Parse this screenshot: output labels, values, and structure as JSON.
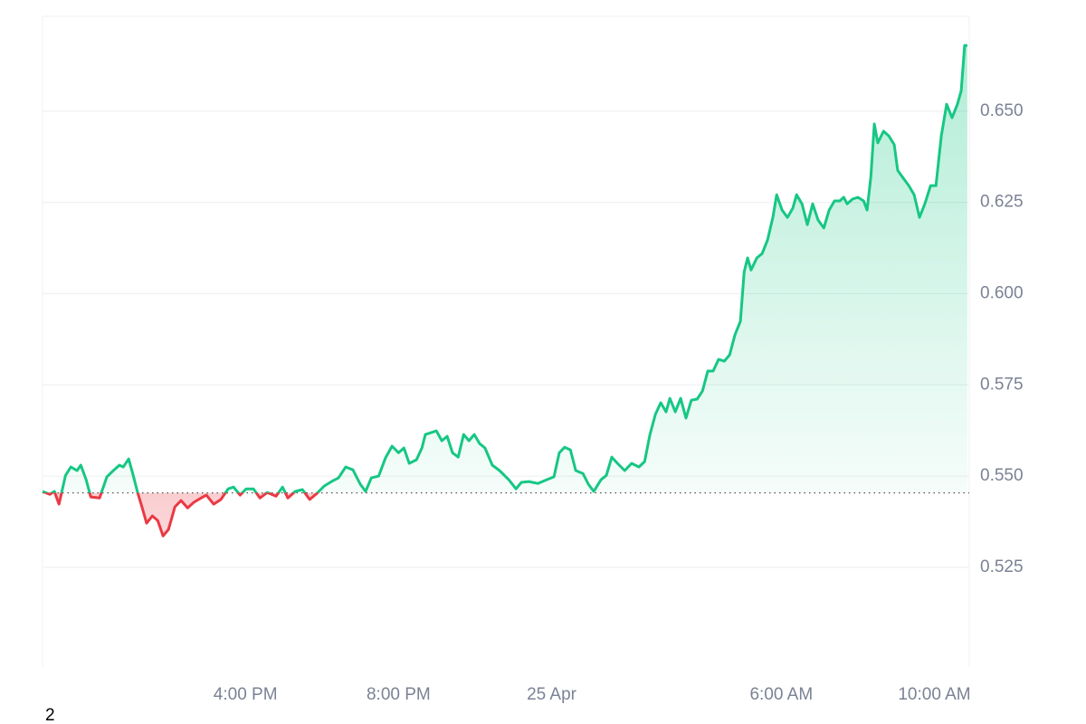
{
  "chart_data": {
    "type": "line",
    "x": [
      10.7,
      10.89,
      11.01,
      11.13,
      11.3,
      11.44,
      11.6,
      11.7,
      11.84,
      11.96,
      12.19,
      12.38,
      12.55,
      12.71,
      12.81,
      12.95,
      13.07,
      13.19,
      13.31,
      13.42,
      13.57,
      13.71,
      13.85,
      13.99,
      14.16,
      14.32,
      14.49,
      14.65,
      14.84,
      14.98,
      15.17,
      15.36,
      15.55,
      15.69,
      15.86,
      16.02,
      16.21,
      16.38,
      16.57,
      16.8,
      16.97,
      17.11,
      17.3,
      17.49,
      17.68,
      17.87,
      18.06,
      18.25,
      18.43,
      18.62,
      18.81,
      19.0,
      19.14,
      19.29,
      19.48,
      19.66,
      19.83,
      20.0,
      20.14,
      20.28,
      20.47,
      20.61,
      20.7,
      20.85,
      20.99,
      21.13,
      21.27,
      21.41,
      21.56,
      21.7,
      21.84,
      21.98,
      22.12,
      22.26,
      22.45,
      22.64,
      22.88,
      23.07,
      23.21,
      23.4,
      23.64,
      23.87,
      24.06,
      24.2,
      24.34,
      24.49,
      24.63,
      24.82,
      24.96,
      25.1,
      25.29,
      25.43,
      25.57,
      25.72,
      25.91,
      26.09,
      26.28,
      26.43,
      26.57,
      26.71,
      26.85,
      26.99,
      27.09,
      27.23,
      27.37,
      27.51,
      27.65,
      27.8,
      27.94,
      28.08,
      28.22,
      28.36,
      28.51,
      28.65,
      28.79,
      28.93,
      29.03,
      29.12,
      29.21,
      29.36,
      29.5,
      29.64,
      29.78,
      29.88,
      30.02,
      30.16,
      30.3,
      30.4,
      30.54,
      30.68,
      30.82,
      30.96,
      31.11,
      31.25,
      31.39,
      31.53,
      31.63,
      31.72,
      31.86,
      32.0,
      32.15,
      32.24,
      32.34,
      32.43,
      32.52,
      32.67,
      32.81,
      32.95,
      33.04,
      33.19,
      33.33,
      33.47,
      33.61,
      33.75,
      33.9,
      34.04,
      34.18,
      34.32,
      34.46,
      34.6,
      34.7,
      34.79,
      34.86
    ],
    "values": [
      0.5458,
      0.545,
      0.5458,
      0.5423,
      0.5502,
      0.5525,
      0.5515,
      0.553,
      0.549,
      0.5443,
      0.544,
      0.5498,
      0.5515,
      0.553,
      0.5525,
      0.5547,
      0.5502,
      0.5453,
      0.5411,
      0.5371,
      0.5391,
      0.5378,
      0.5336,
      0.5354,
      0.5416,
      0.5433,
      0.5413,
      0.5428,
      0.544,
      0.5448,
      0.5423,
      0.5436,
      0.5465,
      0.547,
      0.5448,
      0.5465,
      0.5465,
      0.544,
      0.5455,
      0.5445,
      0.547,
      0.544,
      0.5458,
      0.5463,
      0.5436,
      0.5453,
      0.5473,
      0.5485,
      0.5495,
      0.5525,
      0.5517,
      0.5478,
      0.5458,
      0.5495,
      0.55,
      0.555,
      0.5582,
      0.5564,
      0.5577,
      0.5535,
      0.5545,
      0.5577,
      0.5614,
      0.5619,
      0.5624,
      0.5597,
      0.5609,
      0.5564,
      0.5552,
      0.5614,
      0.5597,
      0.5614,
      0.5589,
      0.5577,
      0.553,
      0.5515,
      0.549,
      0.5465,
      0.5483,
      0.5485,
      0.548,
      0.549,
      0.5498,
      0.5564,
      0.5579,
      0.5572,
      0.5515,
      0.5507,
      0.5478,
      0.5458,
      0.549,
      0.5502,
      0.5552,
      0.5535,
      0.5515,
      0.5535,
      0.5525,
      0.554,
      0.5614,
      0.5669,
      0.5701,
      0.5676,
      0.5713,
      0.5676,
      0.5713,
      0.5659,
      0.5708,
      0.5711,
      0.5733,
      0.5788,
      0.5788,
      0.582,
      0.5815,
      0.5832,
      0.5887,
      0.5924,
      0.606,
      0.6098,
      0.6065,
      0.6098,
      0.611,
      0.6147,
      0.6209,
      0.6271,
      0.6229,
      0.6209,
      0.6234,
      0.6271,
      0.6246,
      0.6189,
      0.6246,
      0.6202,
      0.618,
      0.6229,
      0.6254,
      0.6254,
      0.6264,
      0.6246,
      0.6259,
      0.6264,
      0.6254,
      0.6229,
      0.6321,
      0.6465,
      0.6413,
      0.6445,
      0.6432,
      0.6408,
      0.6338,
      0.6316,
      0.6296,
      0.6271,
      0.6209,
      0.6246,
      0.6296,
      0.6296,
      0.6432,
      0.6519,
      0.6482,
      0.6519,
      0.6556,
      0.668,
      0.668
    ],
    "baseline": 0.5454,
    "color_up": "#16c784",
    "color_down": "#ea3943",
    "xlim": [
      10.7,
      34.91
    ],
    "xticks": [
      {
        "value": 16,
        "label": "4:00 PM"
      },
      {
        "value": 20,
        "label": "8:00 PM"
      },
      {
        "value": 24,
        "label": "25 Apr"
      },
      {
        "value": 30,
        "label": "6:00 AM"
      },
      {
        "value": 34,
        "label": "10:00 AM"
      }
    ],
    "ylim": [
      0.4977,
      0.676
    ],
    "yticks": [
      0.525,
      {
        "value": 0.55,
        "label": "0.550"
      },
      0.575,
      {
        "value": 0.6,
        "label": "0.600"
      },
      0.625,
      {
        "value": 0.65,
        "label": "0.650"
      }
    ],
    "grid": true,
    "corner_label": "2"
  }
}
